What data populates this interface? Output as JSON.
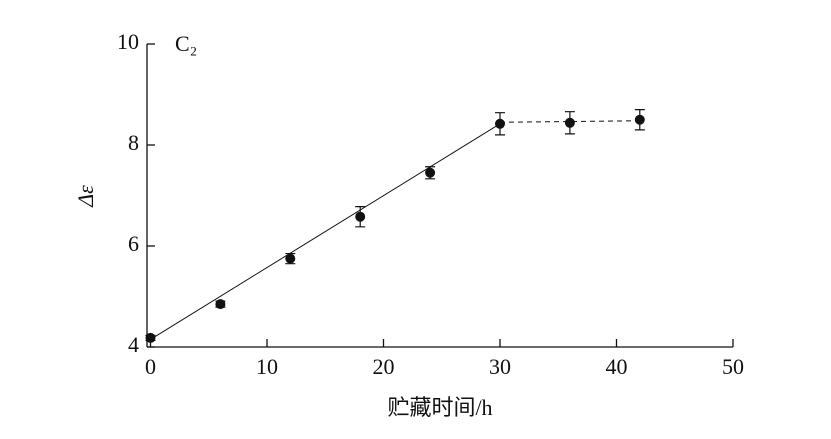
{
  "chart_data": {
    "type": "scatter",
    "title": "C₂",
    "x_label": "贮藏时间/h",
    "y_label": "Δε",
    "x": [
      0,
      6,
      12,
      18,
      24,
      30,
      36,
      42
    ],
    "values": [
      4.18,
      4.85,
      5.75,
      6.58,
      7.45,
      8.42,
      8.44,
      8.5
    ],
    "errors": [
      0.05,
      0.06,
      0.1,
      0.2,
      0.12,
      0.22,
      0.22,
      0.2
    ],
    "color": "#111111",
    "lines": [
      {
        "x": [
          0,
          30
        ],
        "y": [
          4.15,
          8.42
        ],
        "style": "solid"
      },
      {
        "x": [
          30,
          42
        ],
        "y": [
          8.45,
          8.48
        ],
        "style": "dashed"
      }
    ],
    "xlim": [
      -0.3,
      50
    ],
    "ylim": [
      4,
      10
    ],
    "xticks": [
      0,
      10,
      20,
      30,
      40,
      50
    ],
    "yticks": [
      4,
      6,
      8,
      10
    ],
    "grid": false
  }
}
